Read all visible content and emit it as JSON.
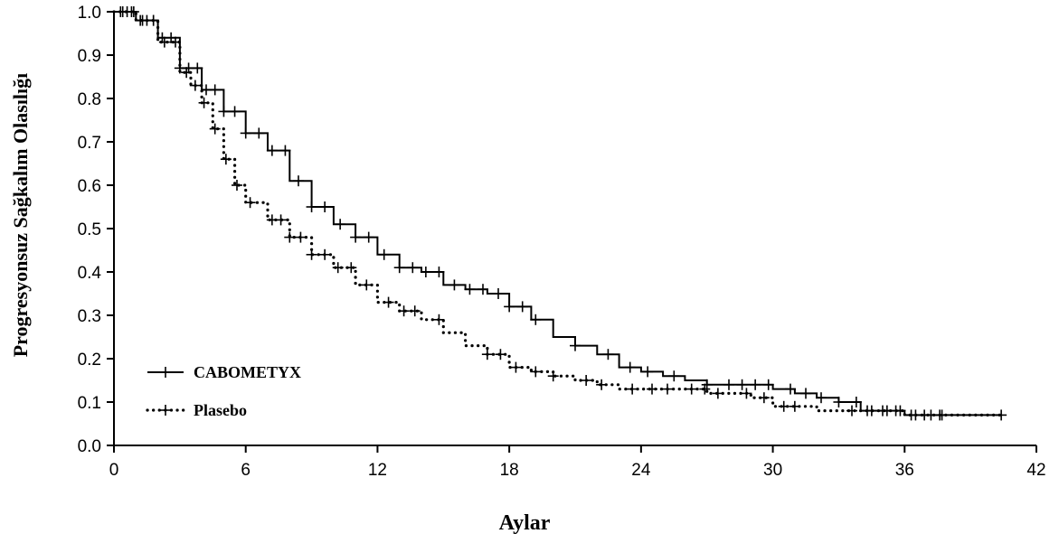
{
  "chart_data": {
    "type": "line",
    "xlabel": "Aylar",
    "ylabel": "Progresyonsuz Sağkalım Olasılığı",
    "xlim": [
      0,
      42
    ],
    "ylim": [
      0,
      1
    ],
    "xticks": [
      0,
      6,
      12,
      18,
      24,
      30,
      36,
      42
    ],
    "yticks": [
      "0.0",
      "0.1",
      "0.2",
      "0.3",
      "0.4",
      "0.5",
      "0.6",
      "0.7",
      "0.8",
      "0.9",
      "1.0"
    ],
    "grid": false,
    "legend_position": "bottom-left",
    "series": [
      {
        "name": "CABOMETYX",
        "line_style": "solid",
        "color": "#000000",
        "x": [
          0,
          1,
          2,
          3,
          4,
          5,
          6,
          7,
          8,
          9,
          10,
          11,
          12,
          13,
          14,
          15,
          16,
          17,
          18,
          19,
          20,
          21,
          22,
          23,
          24,
          25,
          26,
          27,
          28,
          29,
          30,
          31,
          32,
          33,
          34,
          35,
          36,
          37,
          38,
          39,
          40.4
        ],
        "y": [
          1.0,
          0.98,
          0.94,
          0.87,
          0.82,
          0.77,
          0.72,
          0.68,
          0.61,
          0.55,
          0.51,
          0.48,
          0.44,
          0.41,
          0.4,
          0.37,
          0.36,
          0.35,
          0.32,
          0.29,
          0.25,
          0.23,
          0.21,
          0.18,
          0.17,
          0.16,
          0.15,
          0.14,
          0.14,
          0.14,
          0.13,
          0.12,
          0.11,
          0.1,
          0.08,
          0.08,
          0.07,
          0.07,
          0.07,
          0.07,
          0.07
        ],
        "censor_x": [
          0.3,
          0.6,
          0.9,
          1.2,
          1.5,
          1.8,
          2.2,
          2.6,
          3.0,
          3.4,
          3.8,
          4.2,
          4.6,
          5.0,
          5.5,
          6.0,
          6.6,
          7.2,
          7.8,
          8.4,
          9.0,
          9.6,
          10.3,
          11.0,
          11.6,
          12.3,
          13.0,
          13.6,
          14.2,
          14.8,
          15.5,
          16.2,
          16.8,
          17.5,
          18.0,
          18.6,
          19.2,
          21.0,
          22.5,
          23.5,
          24.3,
          25.5,
          27.0,
          28.0,
          28.6,
          29.2,
          29.8,
          30.8,
          31.5,
          32.2,
          33.0,
          33.8,
          34.5,
          35.2,
          35.8,
          36.5,
          37.2,
          37.7,
          40.4
        ]
      },
      {
        "name": "Plasebo",
        "line_style": "dotted",
        "color": "#000000",
        "x": [
          0,
          1,
          2,
          3,
          3.5,
          4,
          4.5,
          5,
          5.5,
          6,
          7,
          8,
          9,
          10,
          11,
          12,
          13,
          14,
          15,
          16,
          17,
          18,
          19,
          20,
          21,
          22,
          23,
          24,
          25,
          26,
          27,
          28,
          29,
          30,
          31,
          32,
          33,
          34,
          35,
          36,
          37,
          38,
          39,
          40.4
        ],
        "y": [
          1.0,
          0.98,
          0.93,
          0.86,
          0.83,
          0.79,
          0.73,
          0.66,
          0.6,
          0.56,
          0.52,
          0.48,
          0.44,
          0.41,
          0.37,
          0.33,
          0.31,
          0.29,
          0.26,
          0.23,
          0.21,
          0.18,
          0.17,
          0.16,
          0.15,
          0.14,
          0.13,
          0.13,
          0.13,
          0.13,
          0.12,
          0.12,
          0.11,
          0.09,
          0.09,
          0.08,
          0.08,
          0.08,
          0.08,
          0.07,
          0.07,
          0.07,
          0.07,
          0.07
        ],
        "censor_x": [
          0.4,
          0.8,
          1.3,
          1.8,
          2.3,
          2.8,
          3.3,
          3.7,
          4.1,
          4.6,
          5.1,
          5.6,
          6.2,
          7.2,
          7.6,
          8.0,
          8.5,
          9.0,
          9.6,
          10.2,
          10.8,
          11.5,
          12.5,
          13.2,
          13.7,
          14.8,
          17.0,
          17.6,
          18.3,
          19.2,
          20.0,
          21.5,
          22.2,
          23.6,
          24.5,
          25.2,
          26.3,
          26.9,
          27.5,
          28.8,
          29.6,
          30.5,
          31.0,
          33.6,
          34.3,
          35.0,
          35.6,
          36.3,
          36.9,
          37.6
        ]
      }
    ],
    "legend": [
      {
        "label": "CABOMETYX",
        "series": 0
      },
      {
        "label": "Plasebo",
        "series": 1
      }
    ]
  }
}
